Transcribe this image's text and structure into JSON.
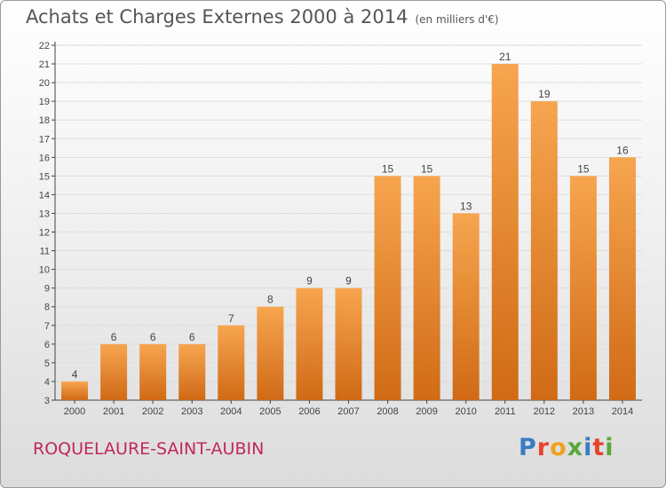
{
  "header": {
    "title": "Achats et Charges Externes 2000 à 2014",
    "subtitle": "(en milliers d'€)"
  },
  "footer": {
    "place": "ROQUELAURE-SAINT-AUBIN",
    "logo": "Proxiti"
  },
  "colors": {
    "bar_top": "#f7a54f",
    "bar_bottom": "#d06a16",
    "grid": "#dddddd",
    "place_text": "#c0285e",
    "logo_letters": [
      "#3b7dc4",
      "#e7442f",
      "#f0a01e",
      "#59a83a",
      "#3b7dc4",
      "#e7442f",
      "#59a83a"
    ]
  },
  "chart_data": {
    "type": "bar",
    "categories": [
      "2000",
      "2001",
      "2002",
      "2003",
      "2004",
      "2005",
      "2006",
      "2007",
      "2008",
      "2009",
      "2010",
      "2011",
      "2012",
      "2013",
      "2014"
    ],
    "values": [
      4,
      6,
      6,
      6,
      7,
      8,
      9,
      9,
      15,
      15,
      13,
      21,
      19,
      15,
      16
    ],
    "ylim": [
      3,
      22
    ],
    "yticks": [
      3,
      4,
      5,
      6,
      7,
      8,
      9,
      10,
      11,
      12,
      13,
      14,
      15,
      16,
      17,
      18,
      19,
      20,
      21,
      22
    ],
    "grid": true,
    "data_labels": true
  }
}
